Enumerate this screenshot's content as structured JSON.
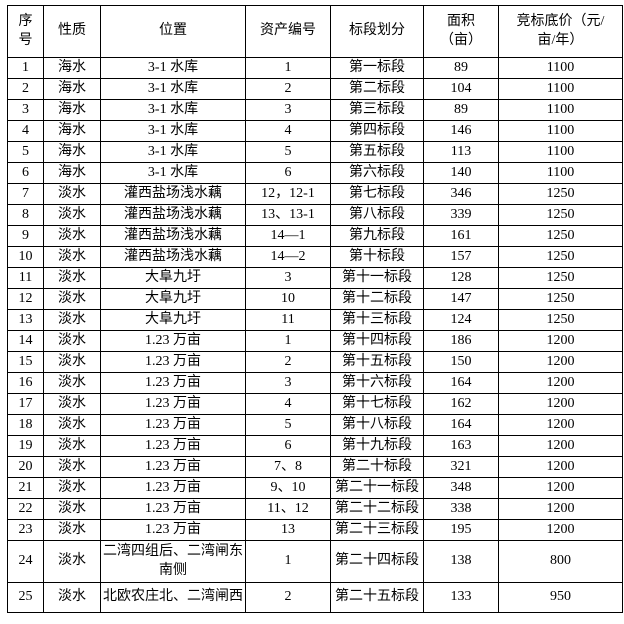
{
  "table": {
    "columns": [
      "序\n号",
      "性质",
      "位置",
      "资产编号",
      "标段划分",
      "面积\n（亩）",
      "竞标底价（元/\n亩/年）"
    ],
    "rows": [
      [
        "1",
        "海水",
        "3-1 水库",
        "1",
        "第一标段",
        "89",
        "1100"
      ],
      [
        "2",
        "海水",
        "3-1 水库",
        "2",
        "第二标段",
        "104",
        "1100"
      ],
      [
        "3",
        "海水",
        "3-1 水库",
        "3",
        "第三标段",
        "89",
        "1100"
      ],
      [
        "4",
        "海水",
        "3-1 水库",
        "4",
        "第四标段",
        "146",
        "1100"
      ],
      [
        "5",
        "海水",
        "3-1 水库",
        "5",
        "第五标段",
        "113",
        "1100"
      ],
      [
        "6",
        "海水",
        "3-1 水库",
        "6",
        "第六标段",
        "140",
        "1100"
      ],
      [
        "7",
        "淡水",
        "灌西盐场浅水藕",
        "12，12-1",
        "第七标段",
        "346",
        "1250"
      ],
      [
        "8",
        "淡水",
        "灌西盐场浅水藕",
        "13、13-1",
        "第八标段",
        "339",
        "1250"
      ],
      [
        "9",
        "淡水",
        "灌西盐场浅水藕",
        "14—1",
        "第九标段",
        "161",
        "1250"
      ],
      [
        "10",
        "淡水",
        "灌西盐场浅水藕",
        "14—2",
        "第十标段",
        "157",
        "1250"
      ],
      [
        "11",
        "淡水",
        "大阜九圩",
        "3",
        "第十一标段",
        "128",
        "1250"
      ],
      [
        "12",
        "淡水",
        "大阜九圩",
        "10",
        "第十二标段",
        "147",
        "1250"
      ],
      [
        "13",
        "淡水",
        "大阜九圩",
        "11",
        "第十三标段",
        "124",
        "1250"
      ],
      [
        "14",
        "淡水",
        "1.23 万亩",
        "1",
        "第十四标段",
        "186",
        "1200"
      ],
      [
        "15",
        "淡水",
        "1.23 万亩",
        "2",
        "第十五标段",
        "150",
        "1200"
      ],
      [
        "16",
        "淡水",
        "1.23 万亩",
        "3",
        "第十六标段",
        "164",
        "1200"
      ],
      [
        "17",
        "淡水",
        "1.23 万亩",
        "4",
        "第十七标段",
        "162",
        "1200"
      ],
      [
        "18",
        "淡水",
        "1.23 万亩",
        "5",
        "第十八标段",
        "164",
        "1200"
      ],
      [
        "19",
        "淡水",
        "1.23 万亩",
        "6",
        "第十九标段",
        "163",
        "1200"
      ],
      [
        "20",
        "淡水",
        "1.23 万亩",
        "7、8",
        "第二十标段",
        "321",
        "1200"
      ],
      [
        "21",
        "淡水",
        "1.23 万亩",
        "9、10",
        "第二十一标段",
        "348",
        "1200"
      ],
      [
        "22",
        "淡水",
        "1.23 万亩",
        "11、12",
        "第二十二标段",
        "338",
        "1200"
      ],
      [
        "23",
        "淡水",
        "1.23 万亩",
        "13",
        "第二十三标段",
        "195",
        "1200"
      ],
      [
        "24",
        "淡水",
        "二湾四组后、二湾闸东南侧",
        "1",
        "第二十四标段",
        "138",
        "800"
      ],
      [
        "25",
        "淡水",
        "北欧农庄北、二湾闸西",
        "2",
        "第二十五标段",
        "133",
        "950"
      ]
    ]
  }
}
